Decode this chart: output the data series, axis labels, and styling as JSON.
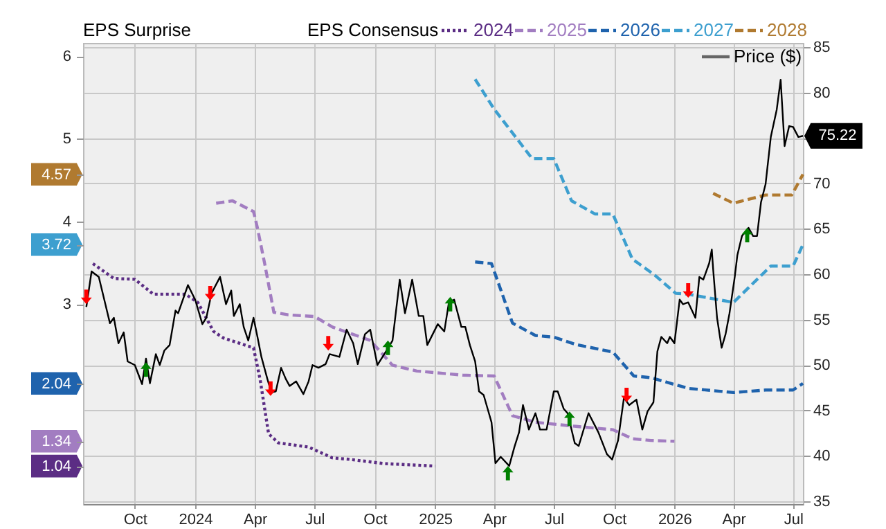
{
  "chart_data": {
    "type": "line",
    "annotations": [
      "EPS Surprise"
    ],
    "legend_title": "EPS Consensus",
    "legend": "top",
    "grid": true,
    "xlim": [
      "2023-07-14",
      "2026-07-16"
    ],
    "xticks": [
      {
        "value": "2023-10-01",
        "label": "Oct"
      },
      {
        "value": "2024-01-01",
        "label": "2024"
      },
      {
        "value": "2024-04-01",
        "label": "Apr"
      },
      {
        "value": "2024-07-01",
        "label": "Jul"
      },
      {
        "value": "2024-10-01",
        "label": "Oct"
      },
      {
        "value": "2025-01-01",
        "label": "2025"
      },
      {
        "value": "2025-04-01",
        "label": "Apr"
      },
      {
        "value": "2025-07-01",
        "label": "Jul"
      },
      {
        "value": "2025-10-01",
        "label": "Oct"
      },
      {
        "value": "2026-01-01",
        "label": "2026"
      },
      {
        "value": "2026-04-01",
        "label": "Apr"
      },
      {
        "value": "2026-07-01",
        "label": "Jul"
      }
    ],
    "ylim": [
      0.58,
      6.16
    ],
    "yticks": [
      1.04,
      1.34,
      2.04,
      3,
      3.72,
      4,
      4.57,
      5,
      6
    ],
    "y2lim": [
      34.7,
      85.45
    ],
    "y2ticks": [
      35,
      40,
      45,
      50,
      55,
      60,
      65,
      70,
      {
        "value": 75,
        "label": null
      },
      80,
      85
    ],
    "series": [
      {
        "name": "2024",
        "type": "line",
        "line_style": "dotted",
        "marker": "none",
        "color": "#5b2d84",
        "x": [
          "2023-07-29",
          "2023-08-30",
          "2023-10-01",
          "2023-10-29",
          "2023-12-17",
          "2024-01-05",
          "2024-01-29",
          "2024-02-13",
          "2024-03-30",
          "2024-04-09",
          "2024-04-22",
          "2024-05-07",
          "2024-06-22",
          "2024-07-28",
          "2024-08-25",
          "2024-10-15",
          "2025-01-01"
        ],
        "values": [
          3.49,
          3.31,
          3.3,
          3.12,
          3.12,
          3.02,
          2.67,
          2.59,
          2.47,
          2.09,
          1.43,
          1.32,
          1.27,
          1.14,
          1.12,
          1.07,
          1.04
        ]
      },
      {
        "name": "2025",
        "type": "line",
        "line_style": "dashed",
        "marker": "none",
        "color": "#a27dc1",
        "x": [
          "2024-02-02",
          "2024-02-27",
          "2024-03-30",
          "2024-04-05",
          "2024-04-16",
          "2024-04-30",
          "2024-05-22",
          "2024-07-01",
          "2024-07-29",
          "2024-09-24",
          "2024-10-28",
          "2024-12-04",
          "2025-01-15",
          "2025-02-12",
          "2025-04-01",
          "2025-04-29",
          "2025-06-03",
          "2025-08-04",
          "2025-09-29",
          "2025-10-29",
          "2025-11-26",
          "2026-01-01"
        ],
        "values": [
          4.22,
          4.25,
          4.12,
          3.92,
          3.49,
          2.9,
          2.87,
          2.85,
          2.72,
          2.56,
          2.26,
          2.19,
          2.16,
          2.14,
          2.13,
          1.65,
          1.57,
          1.52,
          1.48,
          1.37,
          1.35,
          1.34
        ]
      },
      {
        "name": "2026",
        "type": "line",
        "line_style": "dashed",
        "marker": "none",
        "color": "#1f63ad",
        "x": [
          "2025-03-03",
          "2025-03-28",
          "2025-04-29",
          "2025-06-03",
          "2025-07-01",
          "2025-08-04",
          "2025-09-29",
          "2025-10-31",
          "2025-11-26",
          "2026-01-22",
          "2026-04-01",
          "2026-05-20",
          "2026-07-01",
          "2026-07-16"
        ],
        "values": [
          3.51,
          3.49,
          2.77,
          2.62,
          2.6,
          2.51,
          2.42,
          2.13,
          2.11,
          1.98,
          1.93,
          1.96,
          1.96,
          2.04
        ]
      },
      {
        "name": "2027",
        "type": "line",
        "line_style": "dashed",
        "marker": "none",
        "color": "#3d9fcf",
        "x": [
          "2025-03-03",
          "2025-04-01",
          "2025-05-29",
          "2025-07-01",
          "2025-07-28",
          "2025-09-02",
          "2025-09-29",
          "2025-10-29",
          "2025-11-04",
          "2025-12-02",
          "2026-01-03",
          "2026-01-22",
          "2026-04-01",
          "2026-05-28",
          "2026-07-01",
          "2026-07-16"
        ],
        "values": [
          5.72,
          5.36,
          4.76,
          4.76,
          4.25,
          4.09,
          4.09,
          3.54,
          3.51,
          3.35,
          3.13,
          3.12,
          3.02,
          3.46,
          3.46,
          3.72
        ]
      },
      {
        "name": "2028",
        "type": "line",
        "line_style": "dashed",
        "marker": "none",
        "color": "#b07a30",
        "x": [
          "2026-03-01",
          "2026-04-01",
          "2026-05-20",
          "2026-06-29",
          "2026-07-16"
        ],
        "values": [
          4.34,
          4.22,
          4.32,
          4.32,
          4.57
        ]
      },
      {
        "name": "Price ($)",
        "type": "line",
        "axis": "y2",
        "line_style": "solid",
        "marker": "none",
        "color": "#000000",
        "x": [
          "2023-07-19",
          "2023-07-27",
          "2023-08-07",
          "2023-08-17",
          "2023-08-24",
          "2023-08-30",
          "2023-09-06",
          "2023-09-14",
          "2023-09-20",
          "2023-10-01",
          "2023-10-12",
          "2023-10-18",
          "2023-10-24",
          "2023-11-02",
          "2023-11-08",
          "2023-11-15",
          "2023-11-23",
          "2023-12-02",
          "2023-12-06",
          "2023-12-21",
          "2024-01-01",
          "2024-01-12",
          "2024-01-18",
          "2024-01-26",
          "2024-02-08",
          "2024-02-17",
          "2024-02-25",
          "2024-02-29",
          "2024-03-09",
          "2024-03-15",
          "2024-03-22",
          "2024-03-30",
          "2024-04-05",
          "2024-04-11",
          "2024-04-20",
          "2024-04-26",
          "2024-05-03",
          "2024-05-11",
          "2024-05-18",
          "2024-05-24",
          "2024-06-03",
          "2024-06-14",
          "2024-06-22",
          "2024-06-28",
          "2024-07-07",
          "2024-07-18",
          "2024-07-24",
          "2024-08-08",
          "2024-08-19",
          "2024-08-29",
          "2024-09-05",
          "2024-09-16",
          "2024-09-24",
          "2024-10-05",
          "2024-10-18",
          "2024-10-28",
          "2024-11-08",
          "2024-11-16",
          "2024-11-27",
          "2024-12-07",
          "2024-12-14",
          "2024-12-20",
          "2025-01-05",
          "2025-01-15",
          "2025-01-22",
          "2025-01-30",
          "2025-02-10",
          "2025-02-16",
          "2025-02-23",
          "2025-03-03",
          "2025-03-09",
          "2025-03-16",
          "2025-03-24",
          "2025-03-28",
          "2025-04-03",
          "2025-04-11",
          "2025-04-24",
          "2025-05-02",
          "2025-05-09",
          "2025-05-15",
          "2025-05-24",
          "2025-06-03",
          "2025-06-10",
          "2025-06-20",
          "2025-07-01",
          "2025-07-07",
          "2025-07-16",
          "2025-07-22",
          "2025-08-02",
          "2025-08-08",
          "2025-08-23",
          "2025-09-07",
          "2025-09-20",
          "2025-09-28",
          "2025-10-07",
          "2025-10-16",
          "2025-10-24",
          "2025-11-04",
          "2025-11-13",
          "2025-11-21",
          "2025-11-30",
          "2025-12-06",
          "2025-12-12",
          "2025-12-21",
          "2025-12-25",
          "2026-01-01",
          "2026-01-09",
          "2026-01-14",
          "2026-01-22",
          "2026-02-02",
          "2026-02-08",
          "2026-02-14",
          "2026-02-23",
          "2026-02-27",
          "2026-03-01",
          "2026-03-07",
          "2026-03-14",
          "2026-03-20",
          "2026-03-26",
          "2026-04-03",
          "2026-04-07",
          "2026-04-14",
          "2026-04-24",
          "2026-05-01",
          "2026-05-07",
          "2026-05-13",
          "2026-05-20",
          "2026-05-28",
          "2026-06-06",
          "2026-06-12",
          "2026-06-18",
          "2026-06-25",
          "2026-07-01",
          "2026-07-09",
          "2026-07-16"
        ],
        "values": [
          56.4,
          60.3,
          59.7,
          56.7,
          54.6,
          55.2,
          52.4,
          53.6,
          50.4,
          50.0,
          47.9,
          50.7,
          48.0,
          51.2,
          50.0,
          51.6,
          52.2,
          56.0,
          55.7,
          58.8,
          57.2,
          54.5,
          55.2,
          57.9,
          59.7,
          56.7,
          58.2,
          55.4,
          56.7,
          54.2,
          52.7,
          55.2,
          53.1,
          50.9,
          48.5,
          47.0,
          47.1,
          49.7,
          48.5,
          47.7,
          48.2,
          46.8,
          48.2,
          50.0,
          49.7,
          50.1,
          51.2,
          50.9,
          53.9,
          52.4,
          50.1,
          53.4,
          53.9,
          50.0,
          51.5,
          52.7,
          59.4,
          55.7,
          59.4,
          55.4,
          55.4,
          52.2,
          54.5,
          53.7,
          56.9,
          57.2,
          54.2,
          54.2,
          52.2,
          50.4,
          47.1,
          46.7,
          44.7,
          43.7,
          39.2,
          39.9,
          38.9,
          41.0,
          42.6,
          45.6,
          42.9,
          44.7,
          42.9,
          42.9,
          47.1,
          47.1,
          45.2,
          44.7,
          41.4,
          41.1,
          44.7,
          42.6,
          40.2,
          39.6,
          41.7,
          46.4,
          45.6,
          46.2,
          42.9,
          44.9,
          45.9,
          51.5,
          53.1,
          52.4,
          53.1,
          52.4,
          57.2,
          56.7,
          56.9,
          55.2,
          59.7,
          59.4,
          61.2,
          62.7,
          60.6,
          55.2,
          51.9,
          53.4,
          55.7,
          59.7,
          62.1,
          64.2,
          65.1,
          64.2,
          64.2,
          67.9,
          69.9,
          75.1,
          78.1,
          81.4,
          74.1,
          76.3,
          76.2,
          75.1,
          75.22
        ],
        "value_labels": [
          null,
          null,
          null,
          null,
          null,
          null,
          null,
          null,
          null,
          null,
          null,
          null,
          null,
          null,
          null,
          null,
          null,
          null,
          null,
          null,
          null,
          null,
          null,
          null,
          null,
          null,
          null,
          null,
          null,
          null,
          null,
          null,
          null,
          null,
          null,
          null,
          null,
          null,
          null,
          null,
          null,
          null,
          null,
          null,
          null,
          null,
          null,
          null,
          null,
          null,
          null,
          null,
          null,
          null,
          null,
          null,
          null,
          null,
          null,
          null,
          null,
          null,
          null,
          null,
          null,
          null,
          null,
          null,
          null,
          null,
          null,
          null,
          null,
          null,
          null,
          null,
          null,
          null,
          null,
          null,
          null,
          null,
          null,
          null,
          null,
          null,
          null,
          null,
          null,
          null,
          null,
          null,
          null,
          null,
          null,
          null,
          null,
          null,
          null,
          null,
          null,
          null,
          null,
          null,
          null,
          null,
          null,
          null,
          null,
          null,
          null,
          null,
          null,
          null,
          null,
          null,
          null,
          null,
          null,
          null,
          null,
          null,
          null,
          null,
          null,
          null,
          null,
          null,
          null,
          null,
          null,
          null,
          null,
          null,
          "75.22"
        ]
      },
      {
        "type": "scatter",
        "axis": "y2",
        "marker": "triangle-up",
        "color": "#008000",
        "x": [
          "2023-10-18",
          "2024-10-21",
          "2025-01-24",
          "2025-04-22",
          "2025-07-25",
          "2026-04-22"
        ],
        "values": [
          49.5,
          51.9,
          56.7,
          38.1,
          44.1,
          64.3
        ]
      },
      {
        "type": "scatter",
        "axis": "y2",
        "marker": "triangle-down",
        "color": "#ff0000",
        "x": [
          "2023-07-19",
          "2024-01-24",
          "2024-04-25",
          "2024-07-22",
          "2025-10-20",
          "2026-01-22"
        ],
        "values": [
          57.5,
          57.9,
          47.4,
          52.4,
          46.7,
          58.2
        ]
      }
    ]
  }
}
